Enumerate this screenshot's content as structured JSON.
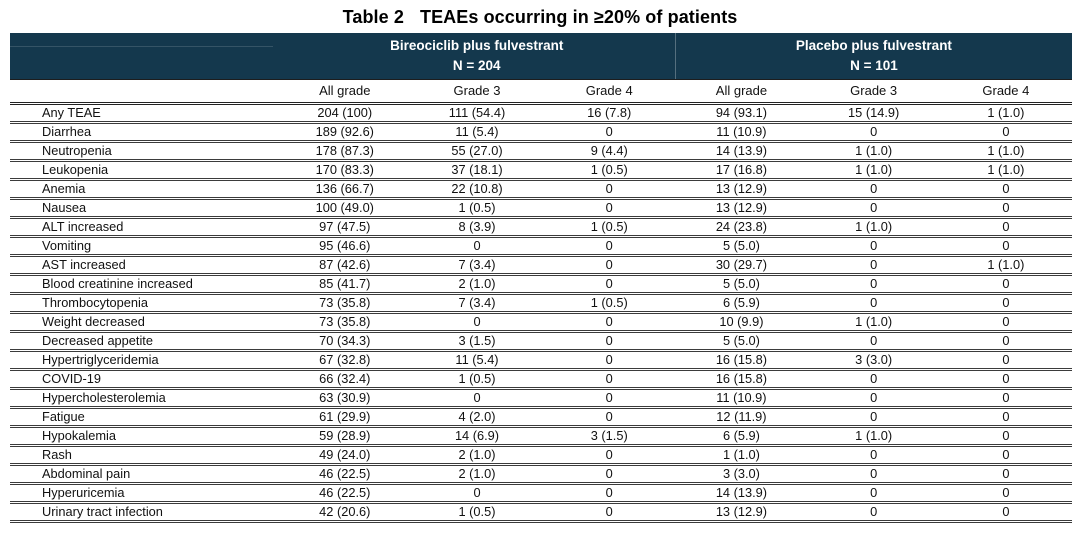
{
  "title": {
    "prefix": "Table 2",
    "text": "TEAEs occurring in ≥20% of patients"
  },
  "table": {
    "groups": [
      {
        "label": "Bireociclib plus fulvestrant",
        "n_label": "N = 204"
      },
      {
        "label": "Placebo plus fulvestrant",
        "n_label": "N = 101"
      }
    ],
    "subheaders": [
      "All grade",
      "Grade 3",
      "Grade 4",
      "All grade",
      "Grade 3",
      "Grade 4"
    ],
    "rows": [
      {
        "label": "Any TEAE",
        "values": [
          "204 (100)",
          "111 (54.4)",
          "16 (7.8)",
          "94 (93.1)",
          "15 (14.9)",
          "1 (1.0)"
        ]
      },
      {
        "label": "Diarrhea",
        "values": [
          "189 (92.6)",
          "11 (5.4)",
          "0",
          "11 (10.9)",
          "0",
          "0"
        ]
      },
      {
        "label": "Neutropenia",
        "values": [
          "178 (87.3)",
          "55 (27.0)",
          "9 (4.4)",
          "14 (13.9)",
          "1 (1.0)",
          "1 (1.0)"
        ]
      },
      {
        "label": "Leukopenia",
        "values": [
          "170 (83.3)",
          "37 (18.1)",
          "1 (0.5)",
          "17 (16.8)",
          "1 (1.0)",
          "1 (1.0)"
        ]
      },
      {
        "label": "Anemia",
        "values": [
          "136 (66.7)",
          "22 (10.8)",
          "0",
          "13 (12.9)",
          "0",
          "0"
        ]
      },
      {
        "label": "Nausea",
        "values": [
          "100 (49.0)",
          "1 (0.5)",
          "0",
          "13 (12.9)",
          "0",
          "0"
        ]
      },
      {
        "label": "ALT increased",
        "values": [
          "97 (47.5)",
          "8 (3.9)",
          "1 (0.5)",
          "24 (23.8)",
          "1 (1.0)",
          "0"
        ]
      },
      {
        "label": "Vomiting",
        "values": [
          "95 (46.6)",
          "0",
          "0",
          "5 (5.0)",
          "0",
          "0"
        ]
      },
      {
        "label": "AST increased",
        "values": [
          "87 (42.6)",
          "7 (3.4)",
          "0",
          "30 (29.7)",
          "0",
          "1 (1.0)"
        ]
      },
      {
        "label": "Blood creatinine increased",
        "values": [
          "85 (41.7)",
          "2 (1.0)",
          "0",
          "5 (5.0)",
          "0",
          "0"
        ]
      },
      {
        "label": "Thrombocytopenia",
        "values": [
          "73 (35.8)",
          "7 (3.4)",
          "1 (0.5)",
          "6 (5.9)",
          "0",
          "0"
        ]
      },
      {
        "label": "Weight decreased",
        "values": [
          "73 (35.8)",
          "0",
          "0",
          "10 (9.9)",
          "1 (1.0)",
          "0"
        ]
      },
      {
        "label": "Decreased appetite",
        "values": [
          "70 (34.3)",
          "3 (1.5)",
          "0",
          "5 (5.0)",
          "0",
          "0"
        ]
      },
      {
        "label": "Hypertriglyceridemia",
        "values": [
          "67 (32.8)",
          "11 (5.4)",
          "0",
          "16 (15.8)",
          "3 (3.0)",
          "0"
        ]
      },
      {
        "label": "COVID-19",
        "values": [
          "66 (32.4)",
          "1 (0.5)",
          "0",
          "16 (15.8)",
          "0",
          "0"
        ]
      },
      {
        "label": "Hypercholesterolemia",
        "values": [
          "63 (30.9)",
          "0",
          "0",
          "11 (10.9)",
          "0",
          "0"
        ]
      },
      {
        "label": "Fatigue",
        "values": [
          "61 (29.9)",
          "4 (2.0)",
          "0",
          "12 (11.9)",
          "0",
          "0"
        ]
      },
      {
        "label": "Hypokalemia",
        "values": [
          "59 (28.9)",
          "14 (6.9)",
          "3 (1.5)",
          "6 (5.9)",
          "1 (1.0)",
          "0"
        ]
      },
      {
        "label": "Rash",
        "values": [
          "49 (24.0)",
          "2 (1.0)",
          "0",
          "1 (1.0)",
          "0",
          "0"
        ]
      },
      {
        "label": "Abdominal pain",
        "values": [
          "46 (22.5)",
          "2 (1.0)",
          "0",
          "3 (3.0)",
          "0",
          "0"
        ]
      },
      {
        "label": "Hyperuricemia",
        "values": [
          "46 (22.5)",
          "0",
          "0",
          "14 (13.9)",
          "0",
          "0"
        ]
      },
      {
        "label": "Urinary tract infection",
        "values": [
          "42 (20.6)",
          "1 (0.5)",
          "0",
          "13 (12.9)",
          "0",
          "0"
        ]
      }
    ]
  },
  "colors": {
    "header_bg": "#14384d",
    "header_text": "#ffffff",
    "row_rule": "#3b3b3b"
  }
}
